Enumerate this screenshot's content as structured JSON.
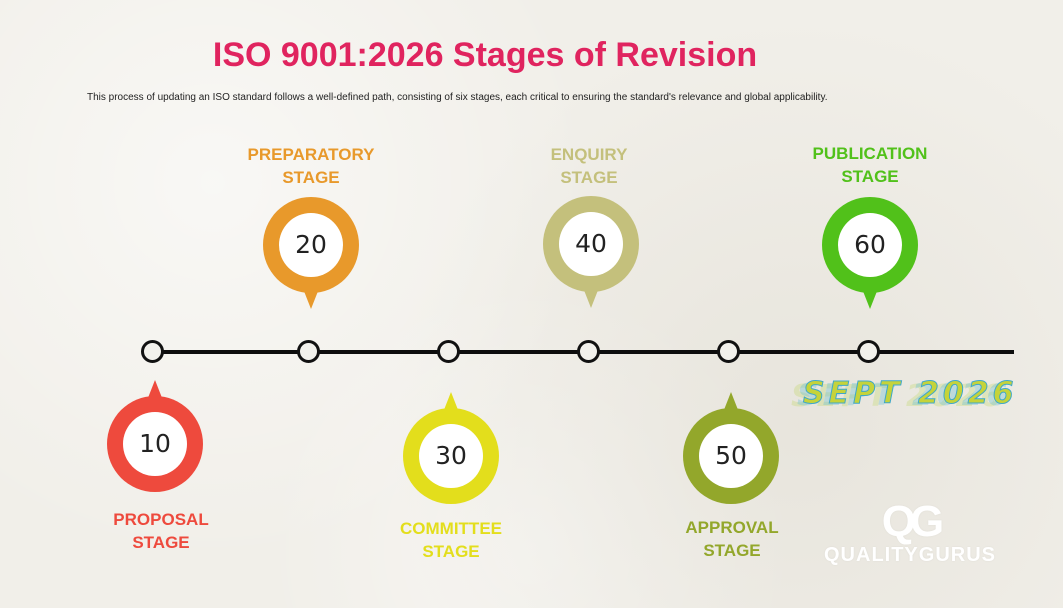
{
  "title": "ISO 9001:2026 Stages of Revision",
  "subtitle": "This process of updating an ISO standard follows a well-defined path, consisting of six stages, each critical to ensuring the standard's relevance and global applicability.",
  "stages": [
    {
      "number": "10",
      "line1": "PROPOSAL",
      "line2": "STAGE",
      "color": "#ee4a3d"
    },
    {
      "number": "20",
      "line1": "PREPARATORY",
      "line2": "STAGE",
      "color": "#e8992b"
    },
    {
      "number": "30",
      "line1": "COMMITTEE",
      "line2": "STAGE",
      "color": "#e3de1c"
    },
    {
      "number": "40",
      "line1": "ENQUIRY",
      "line2": "STAGE",
      "color": "#c4c07c"
    },
    {
      "number": "50",
      "line1": "APPROVAL",
      "line2": "STAGE",
      "color": "#93a72b"
    },
    {
      "number": "60",
      "line1": "PUBLICATION",
      "line2": "STAGE",
      "color": "#51c11a"
    }
  ],
  "release": "SEPT 2026",
  "logo": {
    "mark": "QG",
    "text": "QUALITYGURUS"
  }
}
